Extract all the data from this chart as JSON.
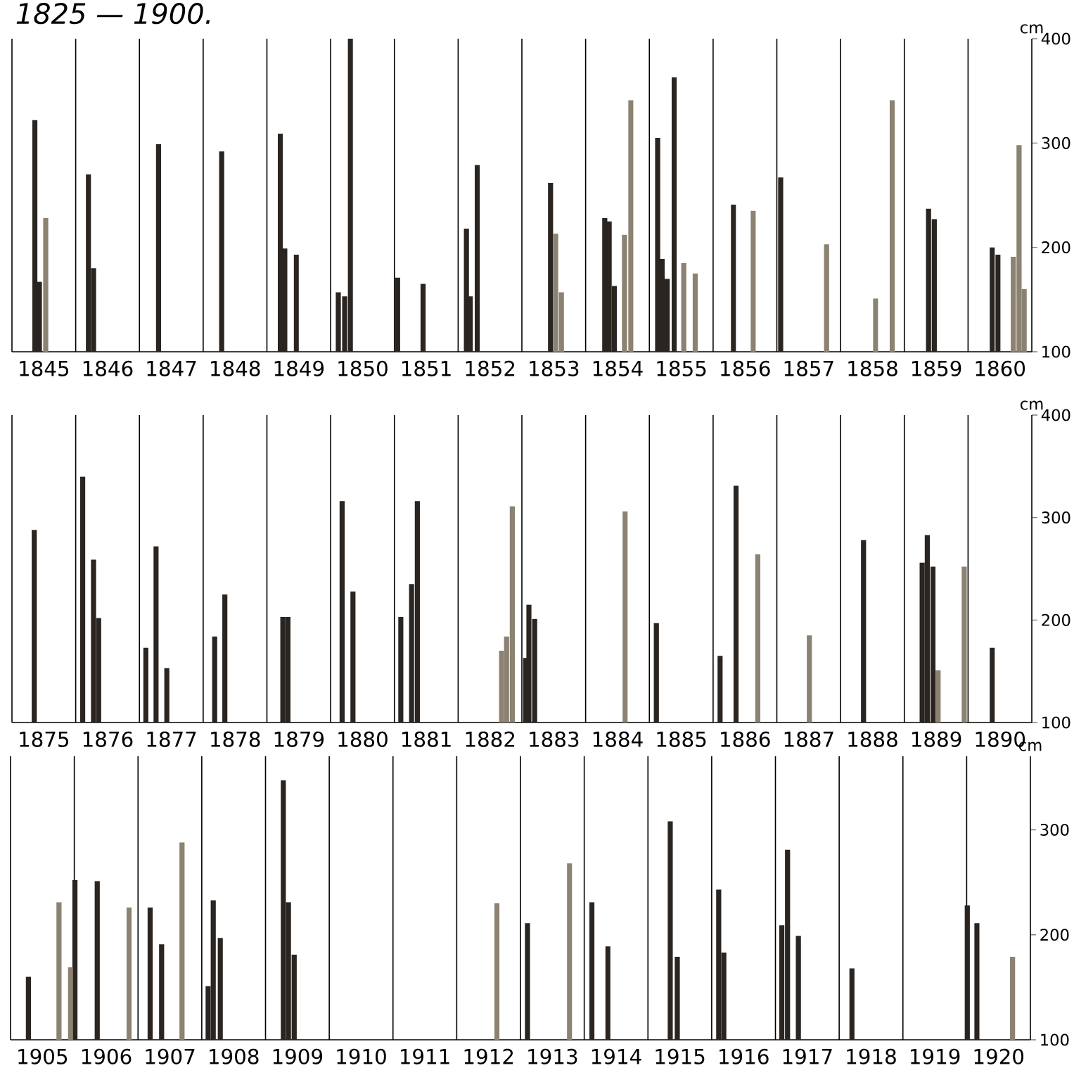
{
  "chart_data": [
    {
      "type": "bar",
      "title": "1825 — 1900.",
      "ylabel": "cm",
      "grid": "x",
      "xlim": [
        1845,
        1861
      ],
      "xticks": [
        {
          "value": 1845.5,
          "label": "1845"
        },
        {
          "value": 1846.5,
          "label": "1846"
        },
        {
          "value": 1847.5,
          "label": "1847"
        },
        {
          "value": 1848.5,
          "label": "1848"
        },
        {
          "value": 1849.5,
          "label": "1849"
        },
        {
          "value": 1850.5,
          "label": "1850"
        },
        {
          "value": 1851.5,
          "label": "1851"
        },
        {
          "value": 1852.5,
          "label": "1852"
        },
        {
          "value": 1853.5,
          "label": "1853"
        },
        {
          "value": 1854.5,
          "label": "1854"
        },
        {
          "value": 1855.5,
          "label": "1855"
        },
        {
          "value": 1856.5,
          "label": "1856"
        },
        {
          "value": 1857.5,
          "label": "1857"
        },
        {
          "value": 1858.5,
          "label": "1858"
        },
        {
          "value": 1859.5,
          "label": "1859"
        },
        {
          "value": 1860.5,
          "label": "1860"
        }
      ],
      "ylim": [
        100,
        400
      ],
      "yticks": [
        100,
        200,
        300,
        400
      ],
      "series": [
        {
          "color": "#2a2520",
          "x": [
            1845.36,
            1845.43,
            1846.2,
            1846.28,
            1847.3,
            1848.29,
            1849.21,
            1849.28,
            1849.46,
            1850.12,
            1850.22,
            1850.31,
            1851.05,
            1851.45,
            1852.13,
            1852.19,
            1852.3,
            1853.45,
            1854.3,
            1854.37,
            1854.45,
            1855.13,
            1855.2,
            1855.28,
            1855.39,
            1856.32,
            1857.06,
            1859.38,
            1859.47,
            1860.38,
            1860.47
          ],
          "values": [
            322,
            167,
            270,
            180,
            299,
            292,
            309,
            199,
            193,
            157,
            153,
            400,
            171,
            165,
            218,
            153,
            279,
            262,
            228,
            225,
            163,
            305,
            189,
            170,
            363,
            241,
            267,
            237,
            227,
            200,
            193
          ]
        },
        {
          "color": "#8c8272",
          "x": [
            1845.53,
            1853.53,
            1853.62,
            1854.61,
            1854.71,
            1855.54,
            1855.72,
            1856.63,
            1857.78,
            1858.55,
            1858.81,
            1860.71,
            1860.8,
            1860.88
          ],
          "values": [
            228,
            213,
            157,
            212,
            341,
            185,
            175,
            235,
            203,
            151,
            341,
            191,
            298,
            160
          ]
        }
      ]
    },
    {
      "type": "bar",
      "ylabel": "cm",
      "grid": "x",
      "xlim": [
        1875,
        1891
      ],
      "xticks": [
        {
          "value": 1875.5,
          "label": "1875"
        },
        {
          "value": 1876.5,
          "label": "1876"
        },
        {
          "value": 1877.5,
          "label": "1877"
        },
        {
          "value": 1878.5,
          "label": "1878"
        },
        {
          "value": 1879.5,
          "label": "1879"
        },
        {
          "value": 1880.5,
          "label": "1880"
        },
        {
          "value": 1881.5,
          "label": "1881"
        },
        {
          "value": 1882.5,
          "label": "1882"
        },
        {
          "value": 1883.5,
          "label": "1883"
        },
        {
          "value": 1884.5,
          "label": "1884"
        },
        {
          "value": 1885.5,
          "label": "1885"
        },
        {
          "value": 1886.5,
          "label": "1886"
        },
        {
          "value": 1887.5,
          "label": "1887"
        },
        {
          "value": 1888.5,
          "label": "1888"
        },
        {
          "value": 1889.5,
          "label": "1889"
        },
        {
          "value": 1890.5,
          "label": "1890"
        }
      ],
      "ylim": [
        100,
        400
      ],
      "yticks": [
        100,
        200,
        300,
        400
      ],
      "series": [
        {
          "color": "#2a2520",
          "x": [
            1875.35,
            1876.11,
            1876.28,
            1876.36,
            1877.1,
            1877.26,
            1877.43,
            1878.18,
            1878.34,
            1879.25,
            1879.33,
            1880.18,
            1880.35,
            1881.1,
            1881.27,
            1881.36,
            1883.06,
            1883.11,
            1883.2,
            1885.11,
            1886.11,
            1886.36,
            1888.36,
            1889.28,
            1889.36,
            1889.45,
            1890.38
          ],
          "values": [
            288,
            340,
            259,
            202,
            173,
            272,
            153,
            184,
            225,
            203,
            203,
            316,
            228,
            203,
            235,
            316,
            163,
            215,
            201,
            197,
            165,
            331,
            278,
            256,
            283,
            252,
            173
          ]
        },
        {
          "color": "#8c8272",
          "x": [
            1882.68,
            1882.76,
            1882.85,
            1884.62,
            1886.7,
            1887.51,
            1889.53,
            1889.94
          ],
          "values": [
            170,
            184,
            311,
            306,
            264,
            185,
            151,
            252
          ]
        }
      ]
    },
    {
      "type": "bar",
      "ylabel": "cm",
      "grid": "x",
      "xlim": [
        1905,
        1921
      ],
      "xticks": [
        {
          "value": 1905.5,
          "label": "1905"
        },
        {
          "value": 1906.5,
          "label": "1906"
        },
        {
          "value": 1907.5,
          "label": "1907"
        },
        {
          "value": 1908.5,
          "label": "1908"
        },
        {
          "value": 1909.5,
          "label": "1909"
        },
        {
          "value": 1910.5,
          "label": "1910"
        },
        {
          "value": 1911.5,
          "label": "1911"
        },
        {
          "value": 1912.5,
          "label": "1912"
        },
        {
          "value": 1913.5,
          "label": "1913"
        },
        {
          "value": 1914.5,
          "label": "1914"
        },
        {
          "value": 1915.5,
          "label": "1915"
        },
        {
          "value": 1916.5,
          "label": "1916"
        },
        {
          "value": 1917.5,
          "label": "1917"
        },
        {
          "value": 1918.5,
          "label": "1918"
        },
        {
          "value": 1919.5,
          "label": "1919"
        },
        {
          "value": 1920.5,
          "label": "1920"
        }
      ],
      "ylim": [
        100,
        370
      ],
      "yticks": [
        100,
        200,
        300
      ],
      "series": [
        {
          "color": "#2a2520",
          "x": [
            1905.28,
            1906.01,
            1906.36,
            1907.19,
            1907.37,
            1908.1,
            1908.18,
            1908.29,
            1909.28,
            1909.36,
            1909.45,
            1913.11,
            1914.12,
            1914.37,
            1915.35,
            1915.46,
            1916.11,
            1916.19,
            1917.1,
            1917.19,
            1917.36,
            1918.2,
            1920.01,
            1920.16
          ],
          "values": [
            160,
            252,
            251,
            226,
            191,
            151,
            233,
            197,
            347,
            231,
            181,
            211,
            231,
            189,
            308,
            179,
            243,
            183,
            209,
            281,
            199,
            168,
            228,
            211
          ]
        },
        {
          "color": "#8c8272",
          "x": [
            1905.76,
            1905.94,
            1906.86,
            1907.69,
            1912.63,
            1913.77,
            1920.72
          ],
          "values": [
            231,
            169,
            226,
            288,
            230,
            268,
            179
          ]
        }
      ]
    }
  ]
}
